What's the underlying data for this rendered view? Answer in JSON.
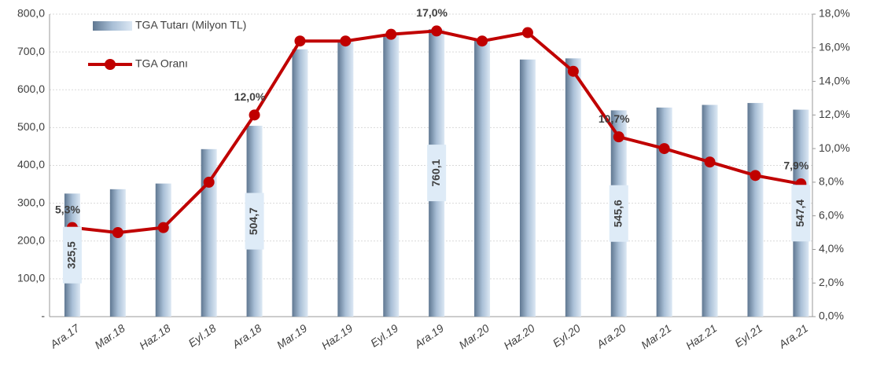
{
  "chart_data": {
    "type": "bar_line",
    "categories": [
      "Ara.17",
      "Mar.18",
      "Haz.18",
      "Eyl.18",
      "Ara.18",
      "Mar.19",
      "Haz.19",
      "Eyl.19",
      "Ara.19",
      "Mar.20",
      "Haz.20",
      "Eyl.20",
      "Ara.20",
      "Mar.21",
      "Haz.21",
      "Eyl.21",
      "Ara.21"
    ],
    "series": [
      {
        "name": "TGA Tutarı (Milyon TL)",
        "color": "#8fa9c4",
        "kind": "bar",
        "values": [
          325.5,
          337,
          352,
          443,
          504.7,
          707,
          730,
          748,
          760.1,
          735,
          680,
          683,
          545.6,
          553,
          560,
          565,
          547.4
        ],
        "value_labels": [
          "325,5",
          null,
          null,
          null,
          "504,7",
          null,
          null,
          null,
          "760,1",
          null,
          null,
          null,
          "545,6",
          null,
          null,
          null,
          "547,4"
        ]
      },
      {
        "name": "TGA Oranı",
        "color": "#c00000",
        "kind": "line",
        "axis": "y2",
        "values": [
          5.3,
          5.0,
          5.3,
          8.0,
          12.0,
          16.4,
          16.4,
          16.8,
          17.0,
          16.4,
          16.9,
          14.6,
          10.7,
          10.0,
          9.2,
          8.4,
          7.9
        ],
        "value_labels": [
          "5,3%",
          null,
          null,
          null,
          "12,0%",
          null,
          null,
          null,
          "17,0%",
          null,
          null,
          null,
          "10,7%",
          null,
          null,
          null,
          "7,9%"
        ]
      }
    ],
    "ylim": [
      0,
      800
    ],
    "yticks": [
      {
        "value": 0,
        "label": "-"
      },
      {
        "value": 100,
        "label": "100,0"
      },
      {
        "value": 200,
        "label": "200,0"
      },
      {
        "value": 300,
        "label": "300,0"
      },
      {
        "value": 400,
        "label": "400,0"
      },
      {
        "value": 500,
        "label": "500,0"
      },
      {
        "value": 600,
        "label": "600,0"
      },
      {
        "value": 700,
        "label": "700,0"
      },
      {
        "value": 800,
        "label": "800,0"
      }
    ],
    "y2lim": [
      0,
      18
    ],
    "y2ticks": [
      {
        "value": 0,
        "label": "0,0%"
      },
      {
        "value": 2,
        "label": "2,0%"
      },
      {
        "value": 4,
        "label": "4,0%"
      },
      {
        "value": 6,
        "label": "6,0%"
      },
      {
        "value": 8,
        "label": "8,0%"
      },
      {
        "value": 10,
        "label": "10,0%"
      },
      {
        "value": 12,
        "label": "12,0%"
      },
      {
        "value": 14,
        "label": "14,0%"
      },
      {
        "value": 16,
        "label": "16,0%"
      },
      {
        "value": 18,
        "label": "18,0%"
      }
    ],
    "grid": true
  }
}
